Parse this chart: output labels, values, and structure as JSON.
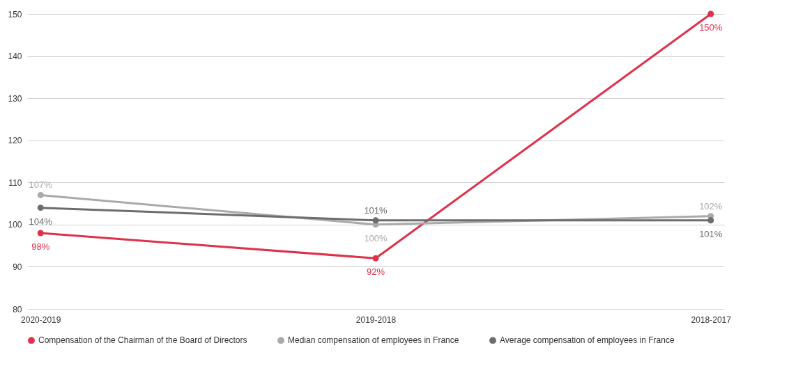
{
  "chart_data": {
    "type": "line",
    "categories": [
      "2020-2019",
      "2019-2018",
      "2018-2017"
    ],
    "series": [
      {
        "name": "Compensation of the Chairman of the Board of Directors",
        "color": "#e0304a",
        "values": [
          98,
          92,
          150
        ],
        "value_labels": [
          "98%",
          "92%",
          "150%"
        ]
      },
      {
        "name": "Median compensation of employees in France",
        "color": "#aaaaaa",
        "values": [
          107,
          100,
          102
        ],
        "value_labels": [
          "107%",
          "100%",
          "102%"
        ]
      },
      {
        "name": "Average compensation of employees in France",
        "color": "#6d6d70",
        "values": [
          104,
          101,
          101
        ],
        "value_labels": [
          "104%",
          "101%",
          "101%"
        ]
      }
    ],
    "ylim": [
      80,
      150
    ],
    "yticks": [
      80,
      90,
      100,
      110,
      120,
      130,
      140,
      150
    ],
    "grid": "y",
    "legend": "bottom",
    "marker": "circle",
    "line_style": "solid"
  }
}
